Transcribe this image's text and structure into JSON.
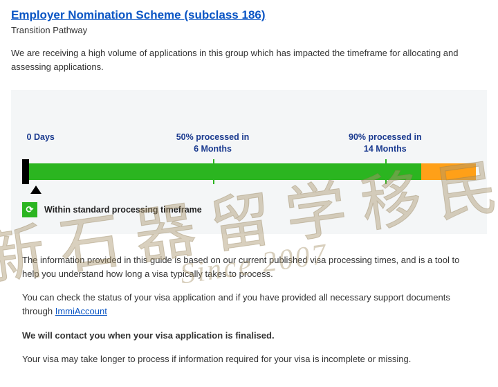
{
  "header": {
    "title_link": "Employer Nomination Scheme (subclass 186)",
    "subtitle": "Transition Pathway",
    "intro": "We are receiving a high volume of applications in this group which has impacted the timeframe for allocating and assessing applications."
  },
  "chart": {
    "type": "timeline-bar",
    "background_color": "#f4f6f7",
    "bar_color_green": "#2bb520",
    "bar_color_orange": "#ffa018",
    "pointer_color": "#000000",
    "start_block_color": "#000000",
    "green_end_percent": 88,
    "markers": [
      {
        "pos_percent": 1,
        "line1": "0 Days",
        "line2": "",
        "align": "left"
      },
      {
        "pos_percent": 42,
        "line1": "50% processed in",
        "line2": "6 Months",
        "align": "center"
      },
      {
        "pos_percent": 80,
        "line1": "90% processed in",
        "line2": "14 Months",
        "align": "center"
      }
    ],
    "pointer_pos_percent": 3,
    "legend_text": "Within standard processing timeframe",
    "legend_icon_glyph": "⟳"
  },
  "info": {
    "p1": "The information provided in this guide is based on our current published visa processing times, and is a tool to help you understand how long a visa typically takes to process.",
    "p2_a": "You can check the status of your visa application and if you have provided all necessary support documents through ",
    "p2_link": "ImmiAccount",
    "p3_bold": "We will contact you when your visa application is finalised.",
    "p4": "Your visa may take longer to process if information required for your visa is incomplete or missing."
  },
  "watermark": {
    "cn": "新石器留学移民",
    "en": "Since 2007"
  }
}
